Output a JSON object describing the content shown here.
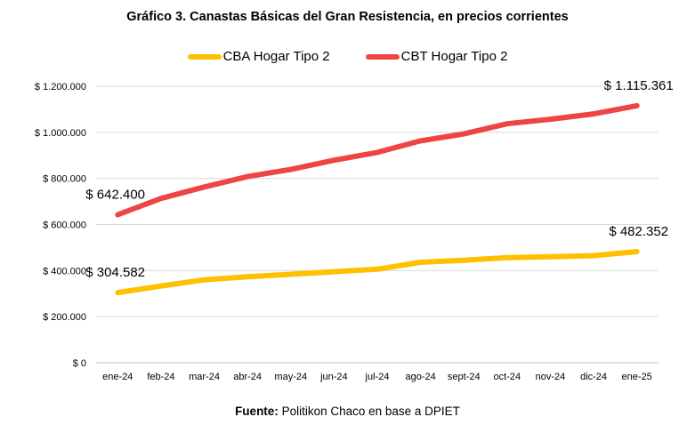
{
  "chart_data": {
    "type": "line",
    "title": "Gráfico 3. Canastas Básicas del Gran Resistencia, en precios corrientes",
    "categories": [
      "ene-24",
      "feb-24",
      "mar-24",
      "abr-24",
      "may-24",
      "jun-24",
      "jul-24",
      "ago-24",
      "sept-24",
      "oct-24",
      "nov-24",
      "dic-24",
      "ene-25"
    ],
    "series": [
      {
        "name": "CBA Hogar Tipo 2",
        "color": "#FFC000",
        "values": [
          304582,
          333000,
          360000,
          373000,
          384000,
          395000,
          406000,
          436000,
          445000,
          456000,
          460000,
          465000,
          482352
        ]
      },
      {
        "name": "CBT Hogar Tipo 2",
        "color": "#EF4444",
        "values": [
          642400,
          713000,
          763000,
          808000,
          839000,
          879000,
          913000,
          963000,
          993000,
          1037000,
          1057000,
          1080000,
          1115361
        ]
      }
    ],
    "yticks": [
      "$ 0",
      "$ 200.000",
      "$ 400.000",
      "$ 600.000",
      "$ 800.000",
      "$ 1.000.000",
      "$ 1.200.000"
    ],
    "ylim": [
      0,
      1200000
    ],
    "grid": true,
    "legend_position": "top",
    "annotations": [
      {
        "series": 0,
        "index": 0,
        "text": "$ 304.582"
      },
      {
        "series": 0,
        "index": 12,
        "text": "$ 482.352"
      },
      {
        "series": 1,
        "index": 0,
        "text": "$ 642.400"
      },
      {
        "series": 1,
        "index": 12,
        "text": "$ 1.115.361"
      }
    ]
  },
  "source": {
    "label": "Fuente:",
    "text": " Politikon Chaco en base a DPIET"
  }
}
